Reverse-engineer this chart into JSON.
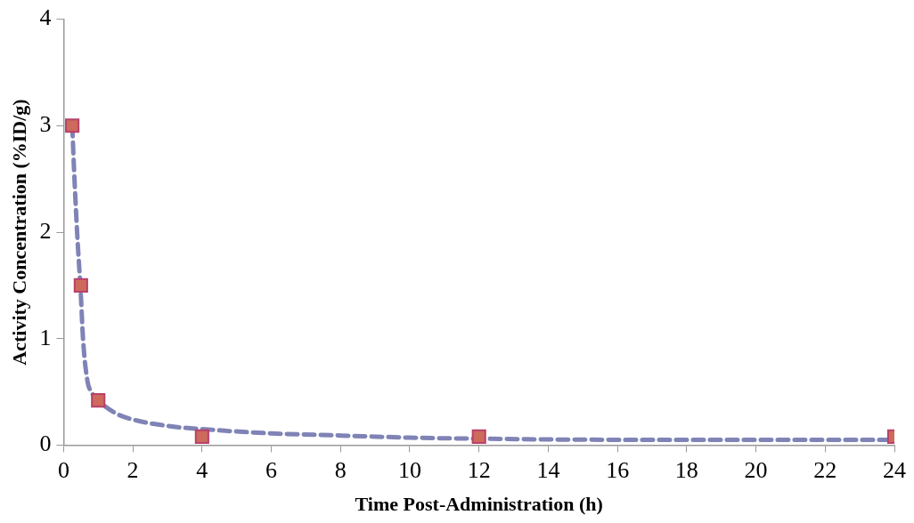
{
  "chart_data": {
    "type": "scatter",
    "xlabel": "Time Post-Administration (h)",
    "ylabel": "Activity Concentration (%ID/g)",
    "xlim": [
      0,
      24
    ],
    "xticks": [
      0,
      2,
      4,
      6,
      8,
      10,
      12,
      14,
      16,
      18,
      20,
      22,
      24
    ],
    "ylim": [
      0,
      4
    ],
    "yticks": [
      0,
      1,
      2,
      3,
      4
    ],
    "grid": false,
    "legend": false,
    "series": [
      {
        "type": "line",
        "color": "#7f83b5",
        "line_style": "dashed",
        "marker": "none",
        "x": [
          0.25,
          0.3,
          0.39,
          0.5,
          0.56,
          0.69,
          0.8,
          1,
          1.5,
          2,
          3,
          4,
          6,
          8,
          10,
          12,
          16,
          20,
          24
        ],
        "values": [
          3.0,
          2.6,
          2.0,
          1.4,
          1.0,
          0.6,
          0.5,
          0.42,
          0.3,
          0.24,
          0.18,
          0.15,
          0.11,
          0.09,
          0.07,
          0.06,
          0.05,
          0.05,
          0.05
        ]
      },
      {
        "type": "scatter",
        "color": "#cd6a5c",
        "marker": "square",
        "x": [
          0.25,
          0.5,
          1,
          4,
          12,
          24
        ],
        "values": [
          3.0,
          1.5,
          0.42,
          0.08,
          0.08,
          0.08
        ]
      }
    ]
  }
}
